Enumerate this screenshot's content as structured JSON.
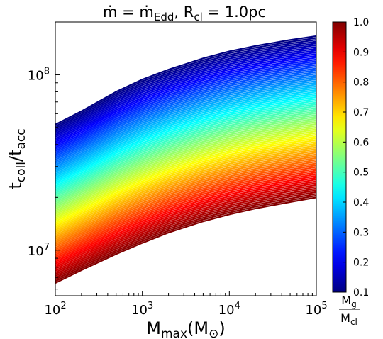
{
  "chart_data": {
    "type": "line",
    "title_parts": {
      "lhs": "ṁ",
      "eq1": " = ",
      "rhs": "ṁ",
      "rhs_sub": "Edd",
      "sep": ", R",
      "sep_sub": "cl",
      "tail": " = 1.0pc"
    },
    "xlabel_parts": {
      "main": "M",
      "sub": "max",
      "tail": "(M",
      "sun": "⊙",
      "close": ")"
    },
    "ylabel_parts": {
      "t1": "t",
      "s1": "coll",
      "slash": "/t",
      "s2": "acc"
    },
    "x_scale": "log",
    "y_scale": "log",
    "xlim": [
      100,
      100000
    ],
    "ylim": [
      5500000,
      200000000
    ],
    "x_ticks": [
      {
        "value": 100,
        "base": "10",
        "exp": "2"
      },
      {
        "value": 1000,
        "base": "10",
        "exp": "3"
      },
      {
        "value": 10000,
        "base": "10",
        "exp": "4"
      },
      {
        "value": 100000,
        "base": "10",
        "exp": "5"
      }
    ],
    "y_ticks": [
      {
        "value": 10000000,
        "base": "10",
        "exp": "7"
      },
      {
        "value": 100000000,
        "base": "10",
        "exp": "8"
      }
    ],
    "family": {
      "parameter_range": [
        0.1,
        1.0
      ],
      "count": 91,
      "x": [
        100,
        200,
        500,
        1000,
        2000,
        5000,
        10000,
        20000,
        50000,
        100000
      ],
      "y_param_0_1": [
        52000000,
        62000000,
        80000000,
        94000000,
        107000000,
        124000000,
        136000000,
        146000000,
        158000000,
        166000000
      ],
      "y_param_1_0": [
        6500000,
        7700000,
        9500000,
        11000000,
        12600000,
        14600000,
        16000000,
        17300000,
        18800000,
        20000000
      ]
    },
    "colorbar": {
      "colormap": "jet",
      "min": 0.1,
      "max": 1.0,
      "ticks": [
        "0.1",
        "0.2",
        "0.3",
        "0.4",
        "0.5",
        "0.6",
        "0.7",
        "0.8",
        "0.9",
        "1.0"
      ],
      "label_num": "M",
      "label_num_sub": "g",
      "label_den": "M",
      "label_den_sub": "cl"
    },
    "grid": false,
    "legend": "none"
  }
}
